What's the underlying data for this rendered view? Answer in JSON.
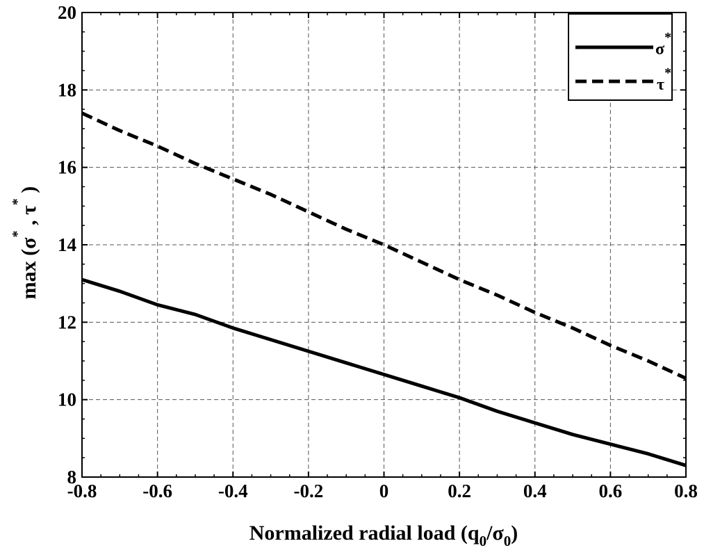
{
  "chart_data": {
    "type": "line",
    "title": "",
    "xlabel": {
      "prefix": "Normalized radial load (q",
      "sub1": "0",
      "mid": "/σ",
      "sub2": "0",
      "suffix": ")"
    },
    "ylabel": {
      "prefix": "max (σ",
      "sup1": "*",
      "mid": " , τ",
      "sup2": "*",
      "suffix": " )"
    },
    "xlim": [
      -0.8,
      0.8
    ],
    "ylim": [
      8,
      20
    ],
    "xticks": [
      "-0.8",
      "-0.6",
      "-0.4",
      "-0.2",
      "0",
      "0.2",
      "0.4",
      "0.6",
      "0.8"
    ],
    "yticks": [
      "8",
      "10",
      "12",
      "14",
      "16",
      "18",
      "20"
    ],
    "grid": true,
    "legend_position": "top-right",
    "series": [
      {
        "name": "σ",
        "name_sup": "*",
        "line_style": "solid",
        "color": "#000000",
        "x": [
          -0.8,
          -0.7,
          -0.6,
          -0.5,
          -0.4,
          -0.3,
          -0.2,
          -0.1,
          0.0,
          0.1,
          0.2,
          0.3,
          0.4,
          0.5,
          0.6,
          0.7,
          0.8
        ],
        "y": [
          13.1,
          12.8,
          12.45,
          12.2,
          11.85,
          11.55,
          11.25,
          10.95,
          10.65,
          10.35,
          10.05,
          9.7,
          9.4,
          9.1,
          8.85,
          8.6,
          8.3
        ]
      },
      {
        "name": "τ",
        "name_sup": "*",
        "line_style": "dashed",
        "color": "#000000",
        "x": [
          -0.8,
          -0.7,
          -0.6,
          -0.5,
          -0.4,
          -0.3,
          -0.2,
          -0.1,
          0.0,
          0.1,
          0.2,
          0.3,
          0.4,
          0.5,
          0.6,
          0.7,
          0.8
        ],
        "y": [
          17.4,
          16.95,
          16.55,
          16.1,
          15.7,
          15.3,
          14.85,
          14.4,
          14.0,
          13.55,
          13.1,
          12.7,
          12.25,
          11.85,
          11.4,
          11.0,
          10.55
        ]
      }
    ]
  }
}
